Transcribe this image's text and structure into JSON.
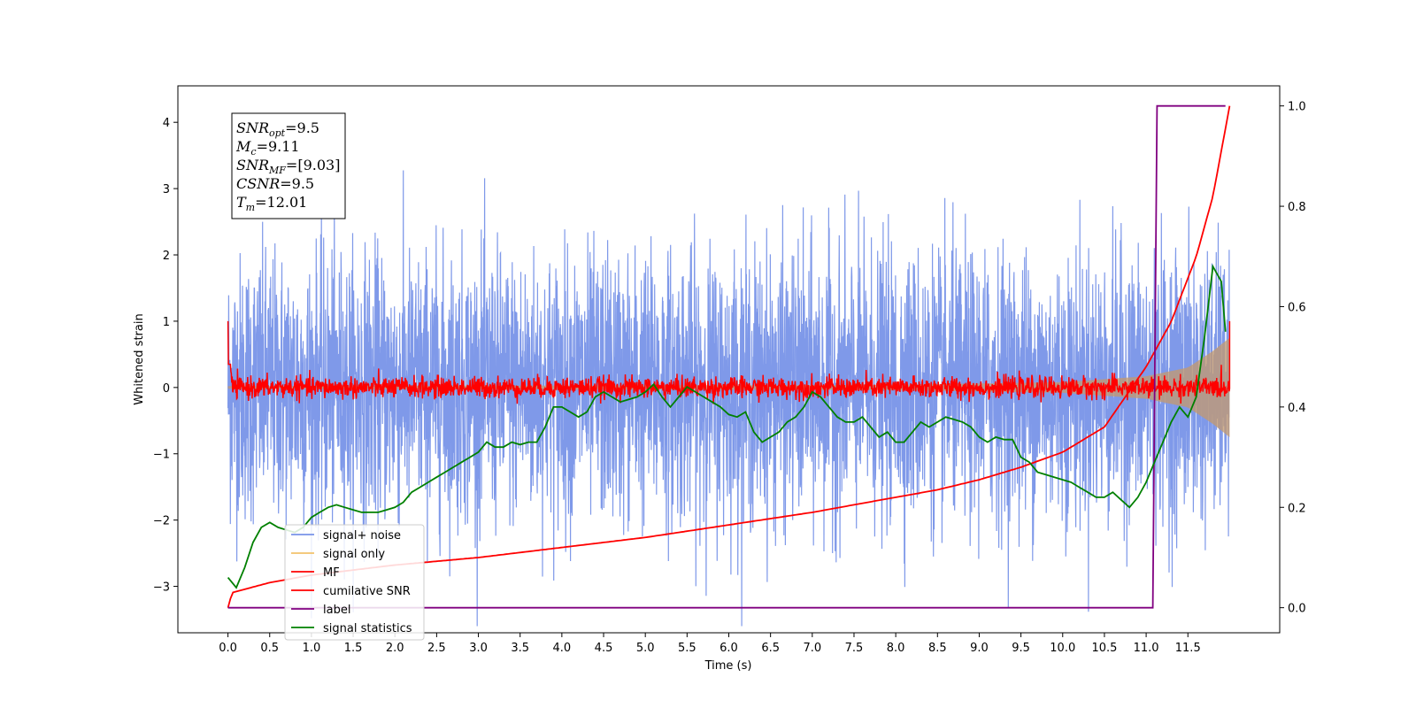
{
  "chart_data": {
    "type": "line",
    "xlabel": "Time (s)",
    "ylabel": "Whitened strain",
    "xlim": [
      -0.6,
      12.6
    ],
    "ylim": [
      -3.7,
      4.55
    ],
    "y2lim": [
      -0.05,
      1.04
    ],
    "xticks": [
      "0.0",
      "0.5",
      "1.0",
      "1.5",
      "2.0",
      "2.5",
      "3.0",
      "3.5",
      "4.0",
      "4.5",
      "5.0",
      "5.5",
      "6.0",
      "6.5",
      "7.0",
      "7.5",
      "8.0",
      "8.5",
      "9.0",
      "9.5",
      "10.0",
      "10.5",
      "11.0",
      "11.5"
    ],
    "yticks": [
      "4",
      "3",
      "2",
      "1",
      "0",
      "−1",
      "−2",
      "−3"
    ],
    "y2ticks": [
      "1.0",
      "0.8",
      "0.6",
      "0.4",
      "0.2",
      "0.0"
    ],
    "annotations": [
      {
        "sym": "SNR",
        "sub": "opt",
        "value": "=9.5"
      },
      {
        "sym": "M",
        "sub": "c",
        "value": "=9.11"
      },
      {
        "sym": "SNR",
        "sub": "MF",
        "value": "=[9.03]"
      },
      {
        "sym": "CSNR",
        "sub": "",
        "value": "=9.5"
      },
      {
        "sym": "T",
        "sub": "m",
        "value": "=12.01"
      }
    ],
    "legend_position": "lower-left",
    "series": [
      {
        "name": "signal+ noise",
        "color": "#7893e8",
        "axis": "left",
        "description_values": {
          "t_start": 0.0,
          "t_end": 12.0,
          "std": 1.0
        }
      },
      {
        "name": "signal only",
        "color": "#f2c36b",
        "axis": "left",
        "envelope": {
          "t": [
            0,
            8,
            10,
            11,
            11.5,
            11.8,
            12.0
          ],
          "amp": [
            0.02,
            0.04,
            0.08,
            0.17,
            0.3,
            0.55,
            0.75
          ]
        }
      },
      {
        "name": "MF",
        "color": "#ff0000",
        "axis": "left",
        "start_value": 1.0,
        "std": 0.08
      },
      {
        "name": "cumilative SNR",
        "color": "#ff0000",
        "axis": "right",
        "x": [
          0.0,
          0.05,
          0.5,
          1.0,
          2.0,
          3.0,
          4.0,
          5.0,
          6.0,
          7.0,
          8.0,
          8.5,
          9.0,
          9.5,
          10.0,
          10.5,
          11.0,
          11.3,
          11.6,
          11.8,
          12.0
        ],
        "y": [
          0.0,
          0.03,
          0.05,
          0.065,
          0.085,
          0.1,
          0.12,
          0.14,
          0.165,
          0.19,
          0.22,
          0.235,
          0.255,
          0.28,
          0.31,
          0.36,
          0.48,
          0.57,
          0.7,
          0.82,
          1.0
        ]
      },
      {
        "name": "label",
        "color": "#800080",
        "axis": "right",
        "x": [
          0.0,
          11.08,
          11.13,
          11.95
        ],
        "y": [
          0.0,
          0.0,
          1.0,
          1.0
        ]
      },
      {
        "name": "signal statistics",
        "color": "#008000",
        "axis": "right",
        "x": [
          0.0,
          0.1,
          0.2,
          0.3,
          0.4,
          0.5,
          0.6,
          0.7,
          0.8,
          0.9,
          1.0,
          1.1,
          1.2,
          1.3,
          1.4,
          1.5,
          1.6,
          1.7,
          1.8,
          1.9,
          2.0,
          2.1,
          2.2,
          2.3,
          2.4,
          2.5,
          2.6,
          2.7,
          2.8,
          2.9,
          3.0,
          3.1,
          3.2,
          3.3,
          3.4,
          3.5,
          3.6,
          3.7,
          3.8,
          3.9,
          4.0,
          4.1,
          4.2,
          4.3,
          4.4,
          4.5,
          4.6,
          4.7,
          4.8,
          4.9,
          5.0,
          5.1,
          5.2,
          5.3,
          5.4,
          5.5,
          5.6,
          5.7,
          5.8,
          5.9,
          6.0,
          6.1,
          6.2,
          6.3,
          6.4,
          6.5,
          6.6,
          6.7,
          6.8,
          6.9,
          7.0,
          7.1,
          7.2,
          7.3,
          7.4,
          7.5,
          7.6,
          7.7,
          7.8,
          7.9,
          8.0,
          8.1,
          8.2,
          8.3,
          8.4,
          8.5,
          8.6,
          8.7,
          8.8,
          8.9,
          9.0,
          9.1,
          9.2,
          9.3,
          9.4,
          9.5,
          9.6,
          9.7,
          9.8,
          9.9,
          10.0,
          10.1,
          10.2,
          10.3,
          10.4,
          10.5,
          10.6,
          10.7,
          10.8,
          10.9,
          11.0,
          11.1,
          11.2,
          11.3,
          11.4,
          11.5,
          11.6,
          11.7,
          11.8,
          11.9,
          11.95
        ],
        "y": [
          0.06,
          0.04,
          0.08,
          0.13,
          0.16,
          0.17,
          0.16,
          0.155,
          0.15,
          0.16,
          0.18,
          0.19,
          0.2,
          0.205,
          0.2,
          0.195,
          0.19,
          0.19,
          0.19,
          0.195,
          0.2,
          0.21,
          0.23,
          0.24,
          0.25,
          0.26,
          0.27,
          0.28,
          0.29,
          0.3,
          0.31,
          0.33,
          0.32,
          0.32,
          0.33,
          0.325,
          0.33,
          0.33,
          0.36,
          0.4,
          0.4,
          0.39,
          0.38,
          0.39,
          0.42,
          0.43,
          0.42,
          0.41,
          0.415,
          0.42,
          0.43,
          0.445,
          0.42,
          0.4,
          0.42,
          0.44,
          0.43,
          0.42,
          0.41,
          0.4,
          0.385,
          0.38,
          0.39,
          0.35,
          0.33,
          0.34,
          0.35,
          0.37,
          0.38,
          0.4,
          0.43,
          0.42,
          0.4,
          0.38,
          0.37,
          0.37,
          0.38,
          0.36,
          0.34,
          0.35,
          0.33,
          0.33,
          0.35,
          0.37,
          0.36,
          0.37,
          0.38,
          0.375,
          0.37,
          0.36,
          0.34,
          0.33,
          0.34,
          0.335,
          0.335,
          0.3,
          0.29,
          0.27,
          0.265,
          0.26,
          0.255,
          0.25,
          0.24,
          0.23,
          0.22,
          0.22,
          0.23,
          0.215,
          0.2,
          0.22,
          0.25,
          0.29,
          0.33,
          0.37,
          0.4,
          0.38,
          0.42,
          0.54,
          0.68,
          0.65,
          0.55
        ]
      }
    ]
  }
}
